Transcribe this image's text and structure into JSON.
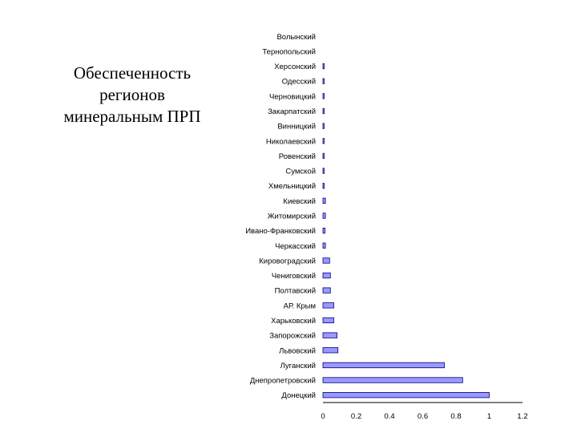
{
  "slide": {
    "title_lines": [
      "Обеспеченность",
      "регионов",
      "минеральным ПРП"
    ]
  },
  "colors": {
    "bar_fill": "#9999ff",
    "bar_stroke": "#000080",
    "axis": "#000000"
  },
  "chart_data": {
    "type": "bar",
    "orientation": "horizontal",
    "categories": [
      "Волынский",
      "Тернопольский",
      "Херсонский",
      "Одесский",
      "Черновицкий",
      "Закарпатский",
      "Винницкий",
      "Николаевский",
      "Ровенский",
      "Сумской",
      "Хмельницкий",
      "Киевский",
      "Житомирский",
      "Ивано-Франковский",
      "Черкасский",
      "Кировоградский",
      "Чениговский",
      "Полтавский",
      "АР. Крым",
      "Харьковский",
      "Запорожский",
      "Львовский",
      "Луганский",
      "Днепропетровский",
      "Донецкий"
    ],
    "values": [
      0.0,
      0.0,
      0.003,
      0.003,
      0.003,
      0.003,
      0.002,
      0.003,
      0.003,
      0.003,
      0.003,
      0.015,
      0.015,
      0.012,
      0.015,
      0.04,
      0.045,
      0.045,
      0.065,
      0.065,
      0.085,
      0.09,
      0.73,
      0.84,
      1.0
    ],
    "xlim": [
      0,
      1.2
    ],
    "xticks": [
      "0",
      "0.2",
      "0.4",
      "0.6",
      "0.8",
      "1",
      "1.2"
    ],
    "title": "",
    "xlabel": "",
    "ylabel": "",
    "grid": false,
    "legend": "none"
  }
}
